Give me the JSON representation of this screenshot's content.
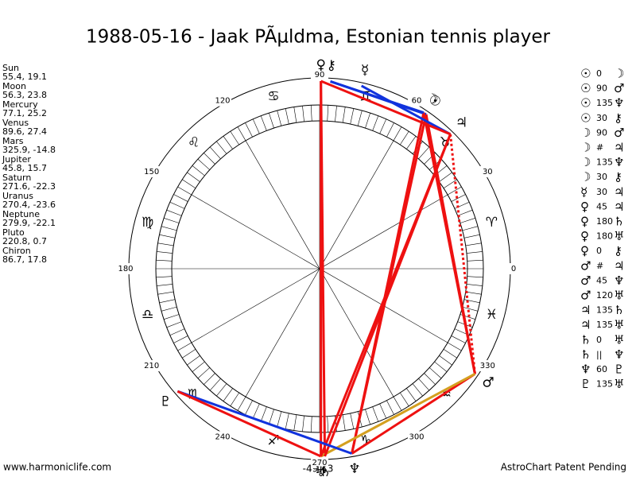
{
  "header": {
    "title": "1988-05-16 - Jaak PÃµldma, Estonian tennis player"
  },
  "planets": [
    {
      "name": "Sun",
      "glyph": "☉",
      "label": "55.4, 19.1",
      "longitude": 55.4
    },
    {
      "name": "Moon",
      "glyph": "☽",
      "label": "56.3, 23.8",
      "longitude": 56.3
    },
    {
      "name": "Mercury",
      "glyph": "☿",
      "label": "77.1, 25.2",
      "longitude": 77.1
    },
    {
      "name": "Venus",
      "glyph": "♀",
      "label": "89.6, 27.4",
      "longitude": 89.6
    },
    {
      "name": "Mars",
      "glyph": "♂",
      "label": "325.9, -14.8",
      "longitude": 325.9
    },
    {
      "name": "Jupiter",
      "glyph": "♃",
      "label": "45.8, 15.7",
      "longitude": 45.8
    },
    {
      "name": "Saturn",
      "glyph": "♄",
      "label": "271.6, -22.3",
      "longitude": 271.6
    },
    {
      "name": "Uranus",
      "glyph": "♅",
      "label": "270.4, -23.6",
      "longitude": 270.4
    },
    {
      "name": "Neptune",
      "glyph": "♆",
      "label": "279.9, -22.1",
      "longitude": 279.9
    },
    {
      "name": "Pluto",
      "glyph": "♇",
      "label": "220.8, 0.7",
      "longitude": 220.8
    },
    {
      "name": "Chiron",
      "glyph": "⚷",
      "label": "86.7, 17.8",
      "longitude": 86.7
    }
  ],
  "aspects": [
    {
      "a": "☉",
      "type": "0",
      "b": "☽",
      "color": "none"
    },
    {
      "a": "☉",
      "type": "90",
      "b": "♂",
      "color": "#ee1111"
    },
    {
      "a": "☉",
      "type": "135",
      "b": "♆",
      "color": "#ee1111"
    },
    {
      "a": "☉",
      "type": "30",
      "b": "⚷",
      "color": "#1133dd"
    },
    {
      "a": "☽",
      "type": "90",
      "b": "♂",
      "color": "#ee1111"
    },
    {
      "a": "☽",
      "type": "#",
      "b": "♃",
      "color": "none"
    },
    {
      "a": "☽",
      "type": "135",
      "b": "♆",
      "color": "#ee1111"
    },
    {
      "a": "☽",
      "type": "30",
      "b": "⚷",
      "color": "#1133dd"
    },
    {
      "a": "☿",
      "type": "30",
      "b": "♃",
      "color": "#1133dd"
    },
    {
      "a": "♀",
      "type": "45",
      "b": "♃",
      "color": "#ee1111"
    },
    {
      "a": "♀",
      "type": "180",
      "b": "♄",
      "color": "#ee1111"
    },
    {
      "a": "♀",
      "type": "180",
      "b": "♅",
      "color": "#ee1111"
    },
    {
      "a": "♀",
      "type": "0",
      "b": "⚷",
      "color": "none"
    },
    {
      "a": "♂",
      "type": "#",
      "b": "♃",
      "color": "#ee1111"
    },
    {
      "a": "♂",
      "type": "45",
      "b": "♆",
      "color": "#ee1111"
    },
    {
      "a": "♂",
      "type": "120",
      "b": "♅",
      "color": "#d4a020"
    },
    {
      "a": "♃",
      "type": "135",
      "b": "♄",
      "color": "#ee1111"
    },
    {
      "a": "♃",
      "type": "135",
      "b": "♅",
      "color": "#ee1111"
    },
    {
      "a": "♄",
      "type": "0",
      "b": "♅",
      "color": "none"
    },
    {
      "a": "♄",
      "type": "||",
      "b": "♆",
      "color": "none"
    },
    {
      "a": "♆",
      "type": "60",
      "b": "♇",
      "color": "#1133dd"
    },
    {
      "a": "♇",
      "type": "135",
      "b": "♅",
      "color": "#ee1111"
    }
  ],
  "zodiac": [
    "♈",
    "♉",
    "♊",
    "♋",
    "♌",
    "♍",
    "♎",
    "♏",
    "♐",
    "♑",
    "♒",
    "♓"
  ],
  "degree_labels": [
    0,
    30,
    60,
    90,
    120,
    150,
    180,
    210,
    240,
    270,
    300,
    330
  ],
  "cursor": "-49,43",
  "footer": {
    "left": "www.harmoniclife.com",
    "right": "AstroChart Patent Pending"
  }
}
